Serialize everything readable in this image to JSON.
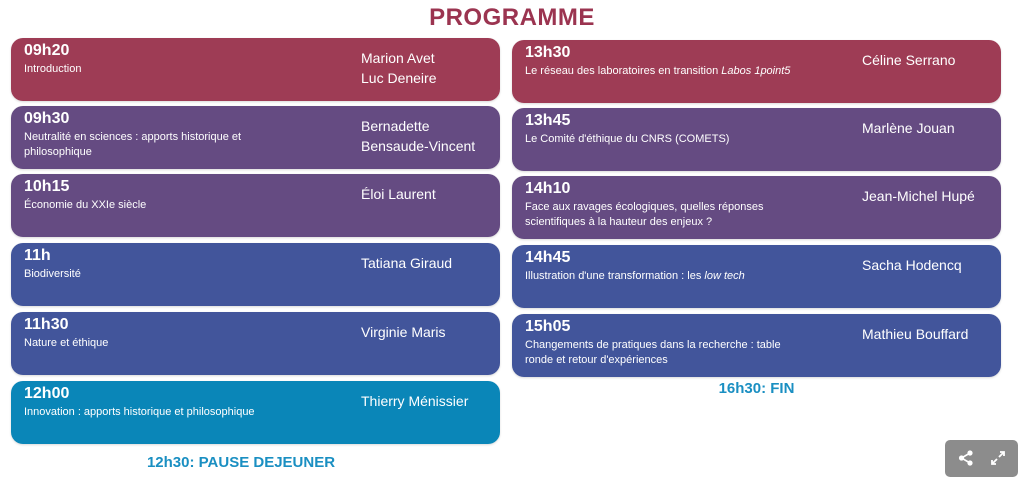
{
  "title": "PROGRAMME",
  "colors": {
    "red": "#9e3c55",
    "purple": "#654b82",
    "blue": "#42559b",
    "teal": "#0a86b8",
    "title": "#9b3450",
    "break": "#1a8fc2"
  },
  "left_column": [
    {
      "time": "09h20",
      "desc": [
        {
          "t": "Introduction"
        }
      ],
      "speaker": [
        "Marion Avet",
        "Luc Deneire"
      ],
      "color": "red"
    },
    {
      "time": "09h30",
      "desc": [
        {
          "t": "Neutralité en sciences : apports historique et philosophique"
        }
      ],
      "speaker": [
        "Bernadette",
        "Bensaude-Vincent"
      ],
      "color": "purple"
    },
    {
      "time": "10h15",
      "desc": [
        {
          "t": "Économie du XXIe siècle"
        }
      ],
      "speaker": [
        "Éloi Laurent"
      ],
      "color": "purple"
    },
    {
      "time": "11h",
      "desc": [
        {
          "t": "Biodiversité"
        }
      ],
      "speaker": [
        "Tatiana Giraud"
      ],
      "color": "blue"
    },
    {
      "time": "11h30",
      "desc": [
        {
          "t": "Nature et éthique"
        }
      ],
      "speaker": [
        "Virginie Maris"
      ],
      "color": "blue"
    },
    {
      "time": "12h00",
      "desc": [
        {
          "t": "Innovation : apports historique et philosophique"
        }
      ],
      "speaker": [
        "Thierry Ménissier"
      ],
      "color": "teal"
    }
  ],
  "left_break": "12h30: PAUSE DEJEUNER",
  "right_column": [
    {
      "time": "13h30",
      "desc": [
        {
          "t": "Le réseau des laboratoires en transition "
        },
        {
          "t": "Labos 1point5",
          "i": true
        }
      ],
      "speaker": [
        "Céline Serrano"
      ],
      "color": "red"
    },
    {
      "time": "13h45",
      "desc": [
        {
          "t": "Le Comité d'éthique du CNRS (COMETS)"
        }
      ],
      "speaker": [
        "Marlène Jouan"
      ],
      "color": "purple"
    },
    {
      "time": "14h10",
      "desc": [
        {
          "t": "Face aux ravages écologiques, quelles réponses scientifiques à la hauteur des enjeux ?"
        }
      ],
      "speaker": [
        "Jean-Michel Hupé"
      ],
      "color": "purple"
    },
    {
      "time": "14h45",
      "desc": [
        {
          "t": "Illustration d'une transformation : les "
        },
        {
          "t": "low tech",
          "i": true
        }
      ],
      "speaker": [
        "Sacha Hodencq"
      ],
      "color": "blue"
    },
    {
      "time": "15h05",
      "desc": [
        {
          "t": "Changements de pratiques dans la recherche : table ronde et retour d'expériences"
        }
      ],
      "speaker": [
        "Mathieu Bouffard"
      ],
      "color": "blue"
    }
  ],
  "right_break": "16h30: FIN",
  "widget": {
    "share_icon": "share-icon",
    "fullscreen_icon": "fullscreen-icon"
  }
}
